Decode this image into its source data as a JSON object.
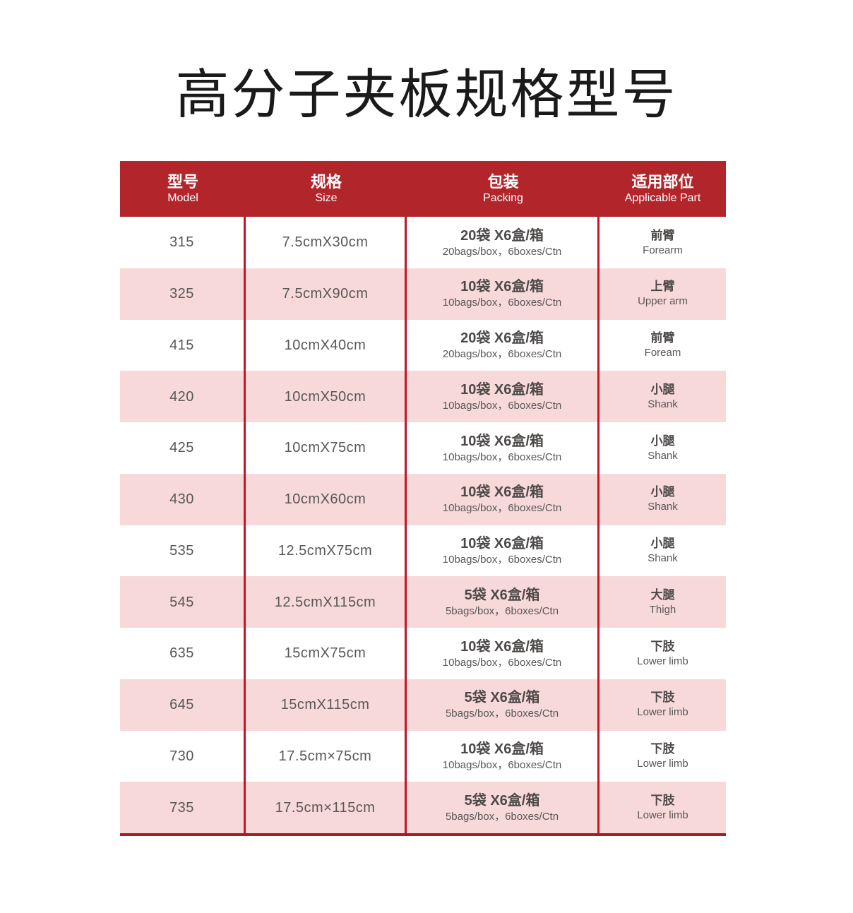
{
  "page": {
    "title": "高分子夹板规格型号"
  },
  "table": {
    "header": {
      "columns": [
        {
          "zh": "型号",
          "en": "Model"
        },
        {
          "zh": "规格",
          "en": "Size"
        },
        {
          "zh": "包装",
          "en": "Packing"
        },
        {
          "zh": "适用部位",
          "en": "Applicable Part"
        }
      ]
    },
    "rows": [
      {
        "model": "315",
        "size": "7.5cmX30cm",
        "packing_zh": "20袋 X6盒/箱",
        "packing_en": "20bags/box，6boxes/Ctn",
        "part_zh": "前臂",
        "part_en": "Forearm"
      },
      {
        "model": "325",
        "size": "7.5cmX90cm",
        "packing_zh": "10袋 X6盒/箱",
        "packing_en": "10bags/box，6boxes/Ctn",
        "part_zh": "上臂",
        "part_en": "Upper arm"
      },
      {
        "model": "415",
        "size": "10cmX40cm",
        "packing_zh": "20袋 X6盒/箱",
        "packing_en": "20bags/box，6boxes/Ctn",
        "part_zh": "前臂",
        "part_en": "Foream"
      },
      {
        "model": "420",
        "size": "10cmX50cm",
        "packing_zh": "10袋 X6盒/箱",
        "packing_en": "10bags/box，6boxes/Ctn",
        "part_zh": "小腿",
        "part_en": "Shank"
      },
      {
        "model": "425",
        "size": "10cmX75cm",
        "packing_zh": "10袋 X6盒/箱",
        "packing_en": "10bags/box，6boxes/Ctn",
        "part_zh": "小腿",
        "part_en": "Shank"
      },
      {
        "model": "430",
        "size": "10cmX60cm",
        "packing_zh": "10袋 X6盒/箱",
        "packing_en": "10bags/box，6boxes/Ctn",
        "part_zh": "小腿",
        "part_en": "Shank"
      },
      {
        "model": "535",
        "size": "12.5cmX75cm",
        "packing_zh": "10袋 X6盒/箱",
        "packing_en": "10bags/box，6boxes/Ctn",
        "part_zh": "小腿",
        "part_en": "Shank"
      },
      {
        "model": "545",
        "size": "12.5cmX115cm",
        "packing_zh": "5袋 X6盒/箱",
        "packing_en": "5bags/box，6boxes/Ctn",
        "part_zh": "大腿",
        "part_en": "Thigh"
      },
      {
        "model": "635",
        "size": "15cmX75cm",
        "packing_zh": "10袋 X6盒/箱",
        "packing_en": "10bags/box，6boxes/Ctn",
        "part_zh": "下肢",
        "part_en": "Lower limb"
      },
      {
        "model": "645",
        "size": "15cmX115cm",
        "packing_zh": "5袋 X6盒/箱",
        "packing_en": "5bags/box，6boxes/Ctn",
        "part_zh": "下肢",
        "part_en": "Lower limb"
      },
      {
        "model": "730",
        "size": "17.5cm×75cm",
        "packing_zh": "10袋 X6盒/箱",
        "packing_en": "10bags/box，6boxes/Ctn",
        "part_zh": "下肢",
        "part_en": "Lower limb"
      },
      {
        "model": "735",
        "size": "17.5cm×115cm",
        "packing_zh": "5袋 X6盒/箱",
        "packing_en": "5bags/box，6boxes/Ctn",
        "part_zh": "下肢",
        "part_en": "Lower limb"
      }
    ]
  },
  "colors": {
    "header_bg": "#b2262b",
    "row_alt_bg": "#f8d9d9",
    "divider": "#c41425",
    "bottom_border": "#9e2124",
    "title_text": "#1a1a1a",
    "cell_text": "#595757",
    "cell_text_strong": "#4c4948"
  }
}
